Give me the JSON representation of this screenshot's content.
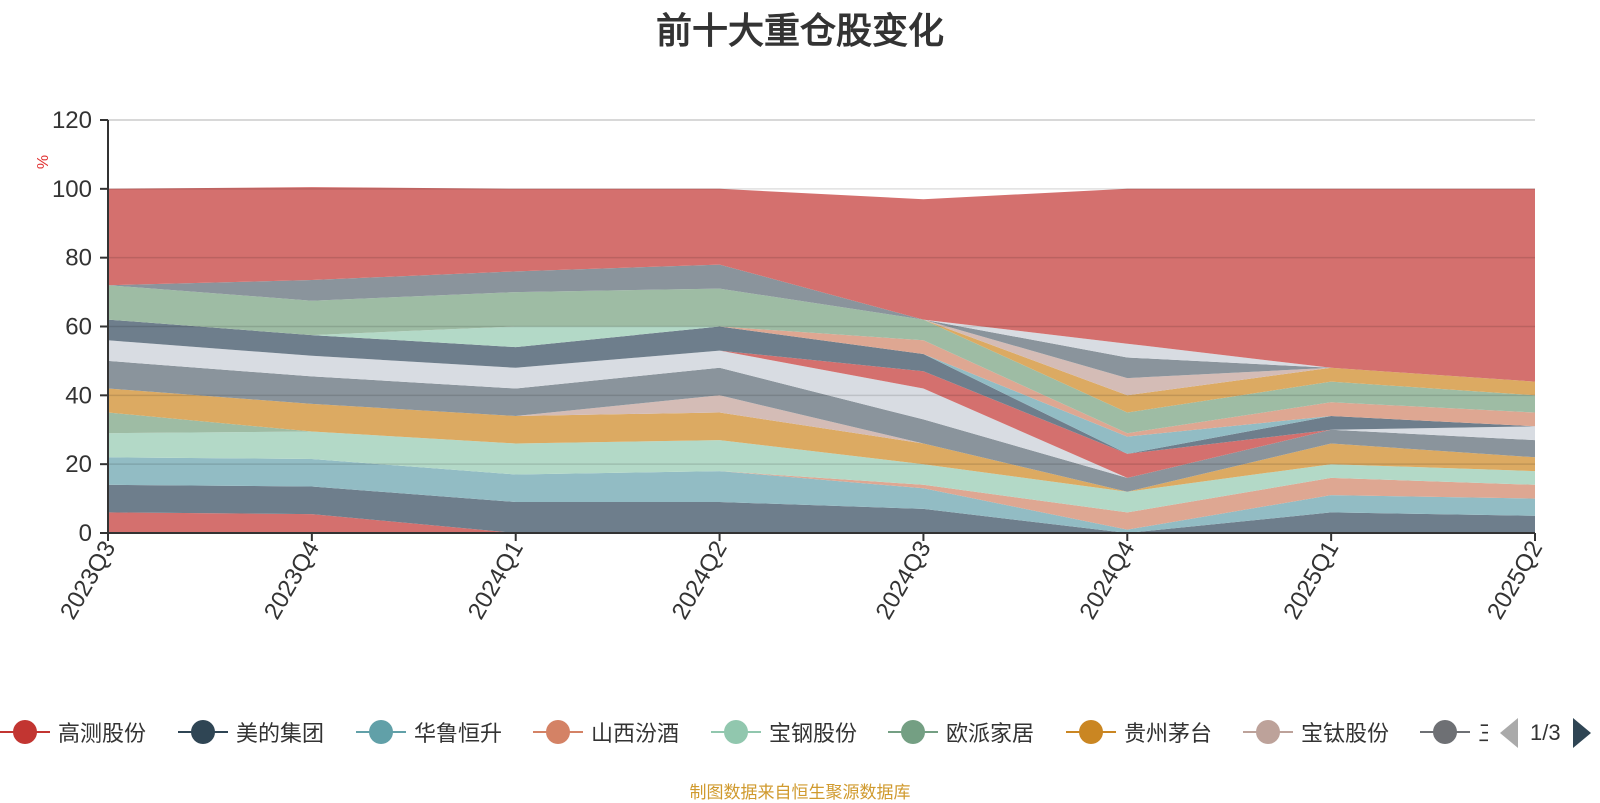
{
  "chart_data": {
    "type": "area",
    "stacked": true,
    "title": "前十大重仓股变化",
    "ylabel": "%",
    "ylim": [
      0,
      120
    ],
    "yticks": [
      0,
      20,
      40,
      60,
      80,
      100,
      120
    ],
    "categories": [
      "2023Q3",
      "2023Q4",
      "2024Q1",
      "2024Q2",
      "2024Q3",
      "2024Q4",
      "2025Q1",
      "2025Q2"
    ],
    "series": [
      {
        "name": "高测股份",
        "color": "#d4706e",
        "values": [
          6,
          5.5,
          0,
          0,
          0,
          0,
          0,
          0
        ]
      },
      {
        "name": "美的集团",
        "color": "#6e7e8c",
        "values": [
          8,
          8,
          9,
          9,
          7,
          0,
          6,
          5
        ]
      },
      {
        "name": "华鲁恒升",
        "color": "#92bcc4",
        "values": [
          8,
          8,
          8,
          9,
          6,
          1,
          5,
          5
        ]
      },
      {
        "name": "山西汾酒",
        "color": "#dea792",
        "values": [
          0,
          0,
          0,
          0,
          1,
          5,
          5,
          4
        ]
      },
      {
        "name": "宝钢股份",
        "color": "#b3d9c7",
        "values": [
          7,
          8,
          9,
          9,
          6,
          6,
          4,
          4
        ]
      },
      {
        "name": "欧派家居",
        "color": "#9ebca4",
        "values": [
          6,
          0,
          0,
          0,
          0,
          0,
          0,
          0
        ]
      },
      {
        "name": "贵州茅台",
        "color": "#dcaa62",
        "values": [
          7,
          8,
          8,
          8,
          6,
          0,
          6,
          4
        ]
      },
      {
        "name": "宝钛股份",
        "color": "#d4bcb6",
        "values": [
          0,
          0,
          0,
          5,
          0,
          0,
          0,
          0
        ]
      },
      {
        "name": "",
        "color": "#8a949c",
        "values": [
          8,
          8,
          8,
          8,
          7,
          4,
          4,
          5
        ]
      },
      {
        "name": "",
        "color": "#d8dce2",
        "values": [
          6,
          6,
          6,
          5,
          9,
          0,
          0,
          4
        ]
      },
      {
        "name": "",
        "color": "#d4706e",
        "values": [
          0,
          0,
          0,
          0,
          5,
          7,
          0,
          0
        ]
      },
      {
        "name": "",
        "color": "#6e7e8c",
        "values": [
          6,
          6,
          6,
          7,
          5,
          0,
          4,
          0
        ]
      },
      {
        "name": "",
        "color": "#92bcc4",
        "values": [
          0,
          0,
          0,
          0,
          0,
          5,
          0,
          0
        ]
      },
      {
        "name": "",
        "color": "#dea792",
        "values": [
          0,
          0,
          0,
          0,
          4,
          1,
          4,
          4
        ]
      },
      {
        "name": "",
        "color": "#b3d9c7",
        "values": [
          0,
          0,
          6,
          0,
          0,
          0,
          0,
          0
        ]
      },
      {
        "name": "",
        "color": "#9ebca4",
        "values": [
          10,
          10,
          10,
          11,
          6,
          6,
          6,
          5
        ]
      },
      {
        "name": "",
        "color": "#dcaa62",
        "values": [
          0,
          0,
          0,
          0,
          0,
          5,
          4,
          4
        ]
      },
      {
        "name": "",
        "color": "#d4bcb6",
        "values": [
          0,
          0,
          0,
          0,
          0,
          5,
          0,
          0
        ]
      },
      {
        "name": "",
        "color": "#8a949c",
        "values": [
          0,
          6,
          6,
          7,
          0,
          6,
          0,
          0
        ]
      },
      {
        "name": "",
        "color": "#d8dce2",
        "values": [
          0,
          0,
          0,
          0,
          0,
          4,
          0,
          0
        ]
      },
      {
        "name": "",
        "color": "#d4706e",
        "values": [
          28,
          27,
          24,
          22,
          35,
          45,
          52,
          56
        ]
      }
    ],
    "legend": {
      "position": "bottom",
      "items": [
        {
          "name": "高测股份",
          "color": "#c23531"
        },
        {
          "name": "美的集团",
          "color": "#2f4554"
        },
        {
          "name": "华鲁恒升",
          "color": "#61a0a8"
        },
        {
          "name": "山西汾酒",
          "color": "#d48265"
        },
        {
          "name": "宝钢股份",
          "color": "#91c7ae"
        },
        {
          "name": "欧派家居",
          "color": "#749f83"
        },
        {
          "name": "贵州茅台",
          "color": "#ca8622"
        },
        {
          "name": "宝钛股份",
          "color": "#bda29a"
        },
        {
          "name": "三",
          "color": "#6e7074"
        }
      ],
      "page_text": "1/3"
    },
    "grid": true,
    "source_note": "制图数据来自恒生聚源数据库"
  }
}
